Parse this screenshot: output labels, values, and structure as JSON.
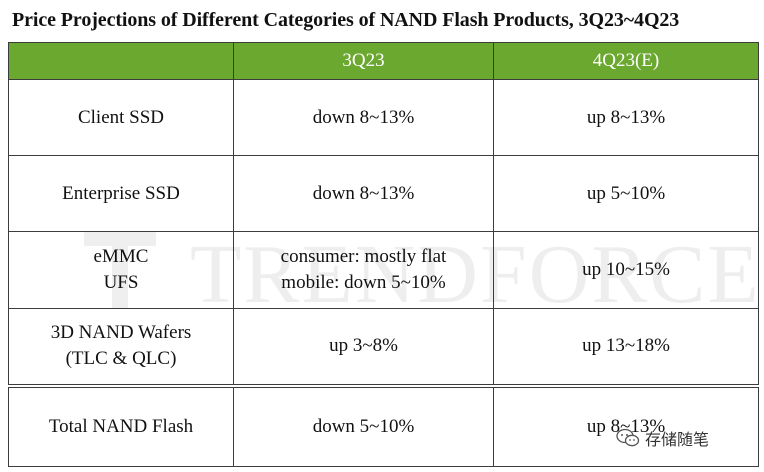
{
  "title": "Price Projections of Different Categories of NAND Flash Products, 3Q23~4Q23",
  "colors": {
    "header_bg": "#6aa82f",
    "header_text": "#ffffff",
    "border": "#3c3c3c"
  },
  "table": {
    "headers": [
      "",
      "3Q23",
      "4Q23(E)"
    ],
    "rows": [
      {
        "category": [
          "Client SSD"
        ],
        "q3": [
          "down 8~13%"
        ],
        "q4": [
          "up 8~13%"
        ]
      },
      {
        "category": [
          "Enterprise SSD"
        ],
        "q3": [
          "down 8~13%"
        ],
        "q4": [
          "up 5~10%"
        ]
      },
      {
        "category": [
          "eMMC",
          "UFS"
        ],
        "q3": [
          "consumer: mostly flat",
          "mobile: down 5~10%"
        ],
        "q4": [
          "up 10~15%"
        ]
      },
      {
        "category": [
          "3D NAND Wafers",
          "(TLC & QLC)"
        ],
        "q3": [
          "up 3~8%"
        ],
        "q4": [
          "up 13~18%"
        ]
      },
      {
        "category": [
          "Total NAND Flash"
        ],
        "q3": [
          "down 5~10%"
        ],
        "q4": [
          "up 8~13%"
        ]
      }
    ]
  },
  "watermark": {
    "text": "TRENDFORCE"
  },
  "wechat_badge": {
    "icon": "wechat-icon",
    "label": "存储随笔"
  }
}
